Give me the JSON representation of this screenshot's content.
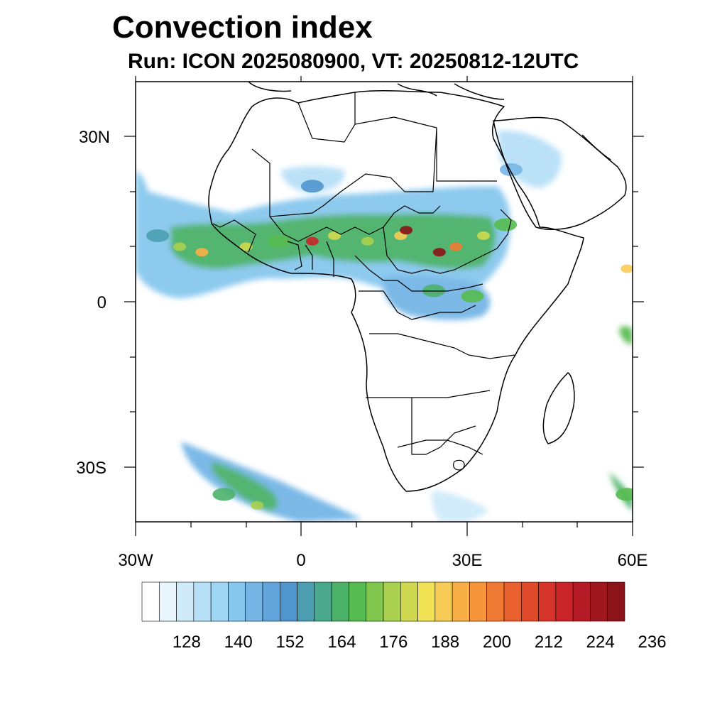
{
  "header": {
    "title": "Convection index",
    "subtitle": "Run: ICON 2025080900,  VT: 20250812-12UTC"
  },
  "axes": {
    "y_ticks": [
      {
        "value": 30,
        "label": "30N"
      },
      {
        "value": 0,
        "label": "0"
      },
      {
        "value": -30,
        "label": "30S"
      }
    ],
    "x_ticks": [
      {
        "value": -30,
        "label": "30W"
      },
      {
        "value": 0,
        "label": "0"
      },
      {
        "value": 30,
        "label": "30E"
      },
      {
        "value": 60,
        "label": "60E"
      }
    ],
    "lon_range": [
      -30,
      60
    ],
    "lat_range": [
      -40,
      40
    ]
  },
  "colorbar": {
    "colors": [
      "#ffffff",
      "#e8f5fc",
      "#cfeaf9",
      "#b7e0f7",
      "#9fd6f4",
      "#87c8ee",
      "#75b6e6",
      "#62a5dd",
      "#5096cd",
      "#4a9eb0",
      "#4aa88c",
      "#4cb26a",
      "#56bb50",
      "#82c74d",
      "#a9d04f",
      "#cfd94f",
      "#f0e155",
      "#f7cb55",
      "#f8b046",
      "#f6953a",
      "#ef7a33",
      "#e7602d",
      "#df4a2a",
      "#d63428",
      "#c92529",
      "#b51b25",
      "#a0161f",
      "#8b1319"
    ],
    "tick_labels": [
      "128",
      "140",
      "152",
      "164",
      "176",
      "188",
      "200",
      "212",
      "224",
      "236"
    ]
  },
  "map": {
    "projection": "cylindrical-equidistant",
    "region": "Africa and Middle East",
    "convection_cells": [
      {
        "lon": -26,
        "lat": 12,
        "value": 150
      },
      {
        "lon": -22,
        "lat": 10,
        "value": 172
      },
      {
        "lon": -18,
        "lat": 9,
        "value": 188
      },
      {
        "lon": -10,
        "lat": 10,
        "value": 176
      },
      {
        "lon": -4,
        "lat": 11,
        "value": 164
      },
      {
        "lon": 2,
        "lat": 11,
        "value": 212
      },
      {
        "lon": 6,
        "lat": 12,
        "value": 176
      },
      {
        "lon": 12,
        "lat": 11,
        "value": 170
      },
      {
        "lon": 18,
        "lat": 12,
        "value": 182
      },
      {
        "lon": 19,
        "lat": 13,
        "value": 224
      },
      {
        "lon": 25,
        "lat": 9,
        "value": 224
      },
      {
        "lon": 28,
        "lat": 10,
        "value": 196
      },
      {
        "lon": 33,
        "lat": 12,
        "value": 176
      },
      {
        "lon": 37,
        "lat": 14,
        "value": 164
      },
      {
        "lon": 24,
        "lat": 2,
        "value": 158
      },
      {
        "lon": 31,
        "lat": 1,
        "value": 164
      },
      {
        "lon": 2,
        "lat": 21,
        "value": 146
      },
      {
        "lon": 38,
        "lat": 24,
        "value": 140
      },
      {
        "lon": -14,
        "lat": -35,
        "value": 158
      },
      {
        "lon": -8,
        "lat": -37,
        "value": 170
      },
      {
        "lon": 59,
        "lat": -35,
        "value": 164
      },
      {
        "lon": 59,
        "lat": 6,
        "value": 182
      }
    ]
  }
}
